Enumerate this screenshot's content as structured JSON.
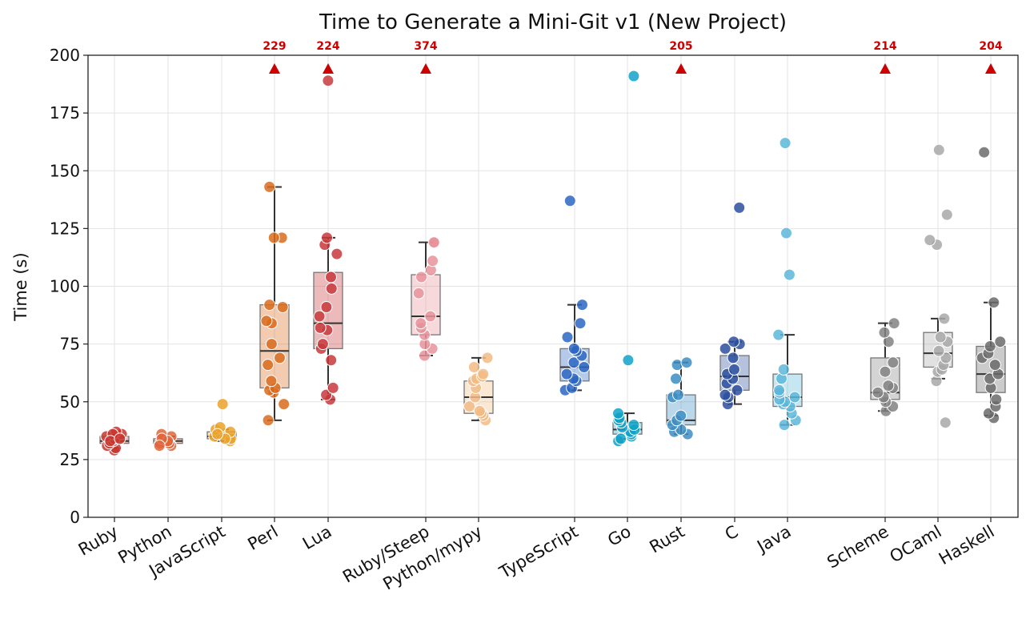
{
  "chart_data": {
    "type": "box",
    "title": "Time to Generate a Mini-Git v1 (New Project)",
    "xlabel": "",
    "ylabel": "Time (s)",
    "ylim": [
      0,
      200
    ],
    "yticks": [
      0,
      25,
      50,
      75,
      100,
      125,
      150,
      175,
      200
    ],
    "grid": true,
    "outlier_marker_color": "#cc0000",
    "categories": [
      {
        "name": "Ruby",
        "color": "#c8352e",
        "box": [
          30,
          32,
          33,
          35,
          36
        ],
        "points": [
          29,
          30,
          31,
          32,
          33,
          34,
          35,
          36,
          37,
          36,
          33,
          34
        ],
        "offscale": null
      },
      {
        "name": "Python",
        "color": "#e0653a",
        "box": [
          31,
          32,
          33,
          34,
          35
        ],
        "points": [
          31,
          32,
          33,
          34,
          35,
          36,
          32,
          33,
          34,
          31
        ],
        "offscale": null
      },
      {
        "name": "JavaScript",
        "color": "#eaa22c",
        "box": [
          33,
          34,
          35,
          37,
          38
        ],
        "points": [
          33,
          34,
          35,
          36,
          37,
          38,
          39,
          49,
          34,
          36
        ],
        "offscale": null
      },
      {
        "name": "Perl",
        "color": "#d96b1d",
        "box": [
          42,
          56,
          72,
          92,
          143
        ],
        "points": [
          42,
          49,
          54,
          55,
          56,
          59,
          66,
          69,
          75,
          84,
          85,
          91,
          92,
          121,
          121,
          143
        ],
        "offscale": 229
      },
      {
        "name": "Lua",
        "color": "#c8383c",
        "box": [
          51,
          73,
          84,
          106,
          121
        ],
        "points": [
          51,
          53,
          56,
          68,
          73,
          75,
          81,
          82,
          87,
          91,
          99,
          104,
          114,
          118,
          121,
          189
        ],
        "offscale": 224
      },
      {
        "name": "Ruby/Steep",
        "color": "#e8929a",
        "box": [
          70,
          79,
          87,
          105,
          119
        ],
        "points": [
          70,
          73,
          75,
          79,
          82,
          84,
          87,
          97,
          104,
          107,
          111,
          119,
          119
        ],
        "offscale": 374
      },
      {
        "name": "Python/mypy",
        "color": "#f2bb84",
        "box": [
          42,
          45,
          52,
          59,
          69
        ],
        "points": [
          42,
          44,
          45,
          46,
          48,
          52,
          56,
          59,
          60,
          61,
          62,
          65,
          69
        ],
        "offscale": null
      },
      {
        "name": "TypeScript",
        "color": "#2b66c3",
        "box": [
          55,
          59,
          65,
          73,
          92
        ],
        "points": [
          55,
          56,
          59,
          60,
          62,
          65,
          67,
          70,
          72,
          73,
          78,
          84,
          92,
          137
        ],
        "offscale": null
      },
      {
        "name": "Go",
        "color": "#10a2c8",
        "box": [
          34,
          36,
          38,
          41,
          45
        ],
        "points": [
          33,
          34,
          35,
          36,
          37,
          38,
          39,
          40,
          41,
          42,
          43,
          45,
          68,
          191
        ],
        "offscale": null
      },
      {
        "name": "Rust",
        "color": "#3c8dc4",
        "box": [
          36,
          40,
          42,
          53,
          67
        ],
        "points": [
          36,
          37,
          38,
          40,
          42,
          44,
          52,
          53,
          60,
          66,
          67
        ],
        "offscale": 205
      },
      {
        "name": "C",
        "color": "#2c4f9e",
        "box": [
          49,
          55,
          61,
          70,
          76
        ],
        "points": [
          49,
          52,
          53,
          55,
          58,
          60,
          62,
          64,
          69,
          73,
          75,
          76,
          134
        ],
        "offscale": null
      },
      {
        "name": "Java",
        "color": "#5cb6da",
        "box": [
          40,
          48,
          52,
          62,
          79
        ],
        "points": [
          40,
          42,
          45,
          48,
          49,
          50,
          51,
          52,
          54,
          55,
          60,
          64,
          79,
          105,
          123,
          162
        ],
        "offscale": null
      },
      {
        "name": "Scheme",
        "color": "#838383",
        "box": [
          46,
          51,
          54,
          69,
          84
        ],
        "points": [
          46,
          48,
          50,
          52,
          54,
          56,
          57,
          63,
          67,
          76,
          80,
          84
        ],
        "offscale": 214
      },
      {
        "name": "OCaml",
        "color": "#a8a8a8",
        "box": [
          60,
          65,
          71,
          80,
          86
        ],
        "points": [
          41,
          59,
          63,
          64,
          66,
          69,
          72,
          76,
          78,
          86,
          118,
          120,
          131,
          159
        ],
        "offscale": null
      },
      {
        "name": "Haskell",
        "color": "#6b6b6b",
        "box": [
          44,
          54,
          62,
          74,
          93
        ],
        "points": [
          43,
          45,
          48,
          51,
          56,
          60,
          62,
          66,
          69,
          71,
          74,
          76,
          93,
          158
        ],
        "offscale": 204
      }
    ]
  }
}
